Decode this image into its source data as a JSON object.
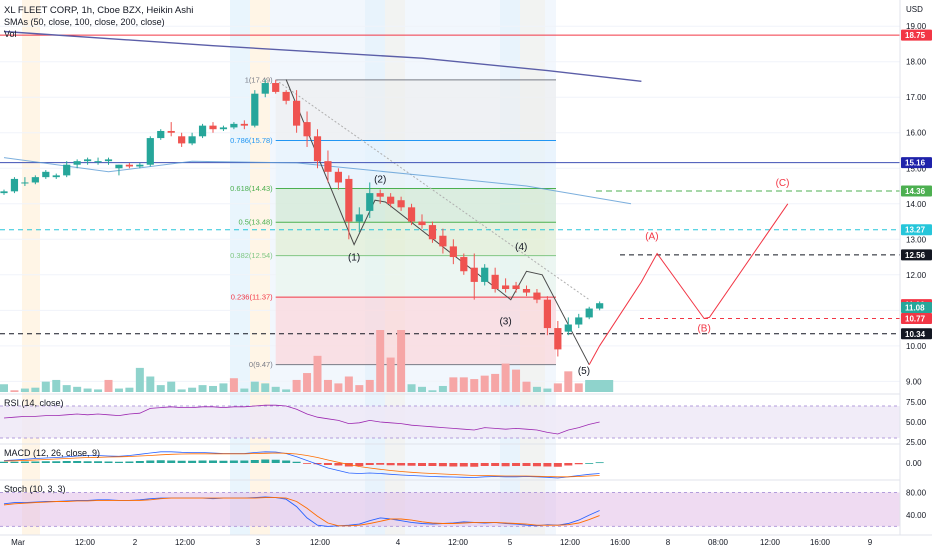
{
  "header": {
    "title": "XL FLEET CORP, 1h, Cboe BZX, Heikin Ashi",
    "smas": "SMAs (50, close, 100, close, 200, close)",
    "vol": "Vol"
  },
  "colors": {
    "up": "#26a69a",
    "down": "#ef5350",
    "vol_up": "#8fd3cc",
    "vol_down": "#f6a6a6",
    "sma_fast": "#5b9bd5",
    "sma_slow": "#5b5ea8",
    "wave_up": "#26a69a"
  },
  "chart_data": [
    {
      "type": "candlestick",
      "title": "XL FLEET CORP, 1h, Cboe BZX, Heikin Ashi",
      "currency": "USD",
      "ylim": [
        8.7,
        19.4
      ],
      "y_ticks": [
        "19.00",
        "18.00",
        "17.00",
        "16.00",
        "15.00",
        "14.00",
        "13.00",
        "12.00",
        "11.00",
        "10.00",
        "9.00"
      ],
      "x_ticks": [
        "Mar",
        "12:00",
        "2",
        "12:00",
        "3",
        "12:00",
        "4",
        "12:00",
        "5",
        "12:00",
        "16:00",
        "8",
        "08:00",
        "12:00",
        "16:00",
        "9"
      ],
      "candles": [
        [
          14.3,
          14.4,
          14.25,
          14.35
        ],
        [
          14.35,
          14.75,
          14.3,
          14.7
        ],
        [
          14.6,
          14.75,
          14.5,
          14.6
        ],
        [
          14.6,
          14.8,
          14.55,
          14.75
        ],
        [
          14.75,
          14.95,
          14.7,
          14.9
        ],
        [
          14.75,
          14.85,
          14.7,
          14.8
        ],
        [
          14.8,
          15.2,
          14.75,
          15.1
        ],
        [
          15.1,
          15.25,
          15.0,
          15.2
        ],
        [
          15.2,
          15.3,
          15.1,
          15.25
        ],
        [
          15.2,
          15.3,
          15.1,
          15.2
        ],
        [
          15.2,
          15.3,
          15.1,
          15.25
        ],
        [
          15.0,
          15.1,
          14.8,
          15.1
        ],
        [
          15.1,
          15.15,
          15.0,
          15.05
        ],
        [
          15.05,
          15.15,
          15.0,
          15.1
        ],
        [
          15.1,
          15.9,
          15.05,
          15.85
        ],
        [
          15.85,
          16.1,
          15.8,
          16.05
        ],
        [
          16.05,
          16.3,
          15.9,
          16.0
        ],
        [
          15.9,
          16.0,
          15.6,
          15.7
        ],
        [
          15.7,
          16.0,
          15.65,
          15.9
        ],
        [
          15.9,
          16.25,
          15.85,
          16.2
        ],
        [
          16.2,
          16.3,
          16.0,
          16.1
        ],
        [
          16.1,
          16.2,
          16.05,
          16.15
        ],
        [
          16.15,
          16.3,
          16.1,
          16.25
        ],
        [
          16.25,
          16.35,
          16.1,
          16.2
        ],
        [
          16.2,
          17.2,
          16.15,
          17.1
        ],
        [
          17.1,
          17.5,
          17.0,
          17.4
        ],
        [
          17.4,
          17.49,
          17.1,
          17.15
        ],
        [
          17.15,
          17.2,
          16.8,
          16.9
        ],
        [
          16.9,
          17.2,
          16.0,
          16.2
        ],
        [
          16.3,
          16.6,
          15.6,
          15.9
        ],
        [
          15.9,
          16.1,
          15.0,
          15.2
        ],
        [
          15.2,
          15.5,
          14.6,
          14.9
        ],
        [
          14.9,
          15.0,
          14.4,
          14.6
        ],
        [
          14.7,
          14.8,
          13.0,
          13.5
        ],
        [
          13.5,
          13.9,
          13.2,
          13.7
        ],
        [
          13.8,
          14.6,
          13.6,
          14.3
        ],
        [
          14.3,
          14.4,
          14.0,
          14.2
        ],
        [
          14.2,
          14.3,
          13.9,
          14.0
        ],
        [
          14.1,
          14.2,
          13.8,
          13.9
        ],
        [
          13.9,
          14.0,
          13.4,
          13.5
        ],
        [
          13.5,
          13.7,
          13.3,
          13.4
        ],
        [
          13.4,
          13.5,
          12.9,
          13.0
        ],
        [
          13.1,
          13.3,
          12.6,
          12.8
        ],
        [
          12.8,
          13.0,
          12.3,
          12.5
        ],
        [
          12.5,
          12.6,
          12.0,
          12.1
        ],
        [
          12.2,
          12.6,
          11.3,
          11.8
        ],
        [
          11.8,
          12.3,
          11.7,
          12.2
        ],
        [
          12.0,
          12.2,
          11.5,
          11.6
        ],
        [
          11.7,
          11.9,
          11.5,
          11.6
        ],
        [
          11.7,
          11.8,
          11.5,
          11.6
        ],
        [
          11.6,
          11.7,
          11.4,
          11.5
        ],
        [
          11.5,
          11.6,
          11.2,
          11.3
        ],
        [
          11.3,
          11.4,
          10.3,
          10.5
        ],
        [
          10.5,
          10.7,
          9.7,
          9.9
        ],
        [
          10.4,
          10.8,
          10.3,
          10.6
        ],
        [
          10.6,
          10.9,
          10.5,
          10.8
        ],
        [
          10.8,
          11.1,
          10.75,
          11.05
        ],
        [
          11.05,
          11.25,
          11.0,
          11.2
        ]
      ],
      "volume": [
        [
          "u",
          9
        ],
        [
          "d",
          2
        ],
        [
          "u",
          4
        ],
        [
          "u",
          5
        ],
        [
          "u",
          12
        ],
        [
          "u",
          14
        ],
        [
          "u",
          8
        ],
        [
          "u",
          6
        ],
        [
          "u",
          4
        ],
        [
          "u",
          3
        ],
        [
          "d",
          14
        ],
        [
          "u",
          4
        ],
        [
          "u",
          5
        ],
        [
          "u",
          28
        ],
        [
          "u",
          18
        ],
        [
          "u",
          8
        ],
        [
          "u",
          12
        ],
        [
          "u",
          3
        ],
        [
          "u",
          5
        ],
        [
          "u",
          8
        ],
        [
          "u",
          7
        ],
        [
          "u",
          10
        ],
        [
          "d",
          16
        ],
        [
          "u",
          4
        ],
        [
          "u",
          12
        ],
        [
          "u",
          10
        ],
        [
          "u",
          6
        ],
        [
          "u",
          3
        ],
        [
          "d",
          14
        ],
        [
          "d",
          22
        ],
        [
          "d",
          42
        ],
        [
          "d",
          14
        ],
        [
          "d",
          10
        ],
        [
          "d",
          18
        ],
        [
          "d",
          8
        ],
        [
          "d",
          14
        ],
        [
          "d",
          72
        ],
        [
          "d",
          40
        ],
        [
          "d",
          72
        ],
        [
          "u",
          9
        ],
        [
          "u",
          6
        ],
        [
          "u",
          2
        ],
        [
          "u",
          7
        ],
        [
          "d",
          17
        ],
        [
          "d",
          17
        ],
        [
          "d",
          15
        ],
        [
          "d",
          19
        ],
        [
          "d",
          21
        ],
        [
          "d",
          33
        ],
        [
          "d",
          26
        ],
        [
          "d",
          12
        ],
        [
          "u",
          6
        ],
        [
          "u",
          4
        ],
        [
          "d",
          10
        ],
        [
          "d",
          24
        ],
        [
          "d",
          10
        ],
        [
          "u",
          10
        ],
        [
          "u",
          10
        ]
      ],
      "price_labels": [
        {
          "value": 18.75,
          "text": "18.75",
          "color": "#f23645"
        },
        {
          "value": 15.16,
          "text": "15.16",
          "color": "#1e22aa"
        },
        {
          "value": 14.36,
          "text": "14.36",
          "color": "#4caf50"
        },
        {
          "value": 13.27,
          "text": "13.27",
          "color": "#26c6da"
        },
        {
          "value": 12.56,
          "text": "12.56",
          "color": "#131722"
        },
        {
          "value": 11.16,
          "text": "11.16",
          "color": "#f23645"
        },
        {
          "value": 11.08,
          "text": "11.08",
          "color": "#26a69a"
        },
        {
          "value": 10.77,
          "text": "10.77",
          "color": "#f23645"
        },
        {
          "value": 10.34,
          "text": "10.34",
          "color": "#131722"
        }
      ],
      "fib_levels": [
        {
          "label": "1(17.49)",
          "value": 17.49,
          "color": "#787b86"
        },
        {
          "label": "0.786(15.78)",
          "value": 15.78,
          "color": "#2196f3"
        },
        {
          "label": "0.618(14.43)",
          "value": 14.43,
          "color": "#4caf50"
        },
        {
          "label": "0.5(13.48)",
          "value": 13.48,
          "color": "#4caf50"
        },
        {
          "label": "0.382(12.54)",
          "value": 12.54,
          "color": "#81c784"
        },
        {
          "label": "0.236(11.37)",
          "value": 11.37,
          "color": "#f23645"
        },
        {
          "label": "0(9.47)",
          "value": 9.47,
          "color": "#787b86"
        }
      ],
      "wave_labels": [
        {
          "text": "(1)",
          "x": 33.5,
          "y": 12.4
        },
        {
          "text": "(2)",
          "x": 36,
          "y": 14.6
        },
        {
          "text": "(3)",
          "x": 48,
          "y": 10.6
        },
        {
          "text": "(4)",
          "x": 49.5,
          "y": 12.7
        },
        {
          "text": "(5)",
          "x": 55.5,
          "y": 9.2
        },
        {
          "text": "(A)",
          "x": 62,
          "y": 13.0
        },
        {
          "text": "(B)",
          "x": 67,
          "y": 10.4
        },
        {
          "text": "(C)",
          "x": 74.5,
          "y": 14.5
        }
      ],
      "wave_path": [
        [
          27,
          17.5
        ],
        [
          33.5,
          12.85
        ],
        [
          35.5,
          14.1
        ],
        [
          36.5,
          14.05
        ],
        [
          48.5,
          11.3
        ],
        [
          50,
          12.1
        ],
        [
          51.5,
          12.0
        ],
        [
          56,
          9.47
        ]
      ],
      "projection_path": [
        [
          56,
          9.47
        ],
        [
          57,
          10.0
        ],
        [
          61,
          11.8
        ],
        [
          62.5,
          12.6
        ],
        [
          67,
          10.77
        ],
        [
          67.5,
          10.8
        ],
        [
          75,
          14.0
        ]
      ],
      "sma_fast": [
        [
          0,
          15.3
        ],
        [
          10,
          14.9
        ],
        [
          18,
          15.2
        ],
        [
          28,
          15.15
        ],
        [
          40,
          14.8
        ],
        [
          50,
          14.5
        ],
        [
          60,
          14.0
        ]
      ],
      "sma_slow": [
        [
          0,
          18.85
        ],
        [
          20,
          18.45
        ],
        [
          40,
          18.1
        ],
        [
          52,
          17.75
        ],
        [
          61,
          17.45
        ]
      ]
    },
    {
      "type": "line",
      "title": "RSI (14, close)",
      "ylim": [
        25,
        80
      ],
      "y_ticks": [
        "75.00",
        "50.00",
        "25.00"
      ],
      "band": [
        30,
        70
      ],
      "values": [
        55,
        56,
        57,
        57,
        58,
        58,
        59,
        60,
        59,
        60,
        59,
        58,
        60,
        61,
        67,
        68,
        69,
        68,
        68,
        69,
        69,
        68,
        69,
        69,
        70,
        71,
        71,
        70,
        66,
        60,
        56,
        54,
        52,
        48,
        49,
        52,
        50,
        49,
        48,
        46,
        45,
        44,
        43,
        42,
        41,
        40,
        43,
        42,
        41,
        42,
        41,
        40,
        37,
        35,
        40,
        43,
        47,
        50
      ]
    },
    {
      "type": "bar",
      "title": "MACD (12, 26, close, 9)",
      "ylim": [
        -0.6,
        0.6
      ],
      "y_ticks": [
        "0.00"
      ],
      "histogram": [
        0.05,
        0.05,
        0.06,
        0.06,
        0.07,
        0.07,
        0.08,
        0.08,
        0.07,
        0.07,
        0.06,
        0.05,
        0.06,
        0.08,
        0.1,
        0.11,
        0.1,
        0.09,
        0.09,
        0.1,
        0.1,
        0.09,
        0.1,
        0.1,
        0.12,
        0.14,
        0.13,
        0.1,
        0.05,
        -0.02,
        -0.05,
        -0.08,
        -0.1,
        -0.14,
        -0.12,
        -0.08,
        -0.07,
        -0.09,
        -0.1,
        -0.11,
        -0.12,
        -0.12,
        -0.13,
        -0.14,
        -0.14,
        -0.15,
        -0.12,
        -0.12,
        -0.13,
        -0.12,
        -0.12,
        -0.13,
        -0.14,
        -0.15,
        -0.1,
        -0.05,
        0.0,
        0.03
      ],
      "macd": [
        0.1,
        0.12,
        0.15,
        0.18,
        0.2,
        0.22,
        0.25,
        0.28,
        0.3,
        0.3,
        0.28,
        0.27,
        0.3,
        0.35,
        0.4,
        0.45,
        0.45,
        0.43,
        0.42,
        0.42,
        0.4,
        0.38,
        0.38,
        0.38,
        0.42,
        0.45,
        0.44,
        0.38,
        0.25,
        0.1,
        -0.05,
        -0.2,
        -0.3,
        -0.4,
        -0.42,
        -0.4,
        -0.42,
        -0.45,
        -0.48,
        -0.5,
        -0.52,
        -0.54,
        -0.55,
        -0.56,
        -0.57,
        -0.58,
        -0.55,
        -0.54,
        -0.55,
        -0.55,
        -0.54,
        -0.55,
        -0.57,
        -0.6,
        -0.55,
        -0.5,
        -0.45,
        -0.42
      ],
      "signal": [
        0.08,
        0.09,
        0.1,
        0.12,
        0.14,
        0.16,
        0.18,
        0.2,
        0.22,
        0.23,
        0.24,
        0.25,
        0.26,
        0.28,
        0.3,
        0.33,
        0.35,
        0.36,
        0.37,
        0.37,
        0.37,
        0.37,
        0.37,
        0.37,
        0.38,
        0.39,
        0.4,
        0.39,
        0.36,
        0.3,
        0.22,
        0.12,
        0.03,
        -0.06,
        -0.14,
        -0.2,
        -0.25,
        -0.3,
        -0.34,
        -0.37,
        -0.4,
        -0.42,
        -0.44,
        -0.46,
        -0.48,
        -0.5,
        -0.5,
        -0.51,
        -0.52,
        -0.52,
        -0.52,
        -0.53,
        -0.54,
        -0.55,
        -0.55,
        -0.54,
        -0.52,
        -0.5
      ]
    },
    {
      "type": "line",
      "title": "Stoch (10, 3, 3)",
      "ylim": [
        10,
        95
      ],
      "y_ticks": [
        "80.00",
        "40.00"
      ],
      "band": [
        20,
        80
      ],
      "k": [
        60,
        62,
        62,
        63,
        64,
        64,
        65,
        66,
        66,
        67,
        67,
        66,
        66,
        67,
        69,
        70,
        70,
        70,
        70,
        70,
        69,
        70,
        70,
        70,
        71,
        72,
        71,
        68,
        55,
        35,
        22,
        20,
        21,
        22,
        24,
        30,
        35,
        33,
        30,
        27,
        25,
        24,
        25,
        26,
        28,
        27,
        26,
        27,
        25,
        24,
        22,
        21,
        23,
        22,
        25,
        31,
        40,
        48
      ],
      "d": [
        58,
        60,
        61,
        62,
        63,
        64,
        64,
        65,
        65,
        66,
        66,
        66,
        66,
        66,
        67,
        69,
        70,
        70,
        70,
        70,
        70,
        70,
        70,
        70,
        70,
        71,
        71,
        70,
        64,
        52,
        38,
        26,
        21,
        21,
        22,
        25,
        29,
        33,
        33,
        31,
        28,
        26,
        25,
        25,
        26,
        27,
        27,
        27,
        26,
        25,
        24,
        22,
        22,
        22,
        23,
        26,
        32,
        39
      ]
    }
  ]
}
